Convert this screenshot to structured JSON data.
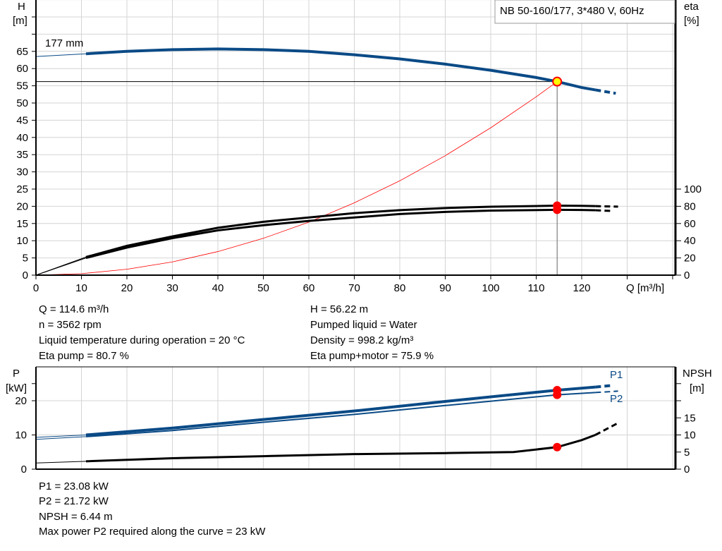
{
  "chart_data": [
    {
      "type": "line",
      "title": "NB 50-160/177, 3*480 V, 60Hz",
      "xlabel": "Q [m³/h]",
      "ylabel": "H [m]",
      "y2label": "eta [%]",
      "xlim": [
        0,
        140
      ],
      "ylim": [
        0,
        80
      ],
      "y2lim": [
        0,
        100
      ],
      "xticks": [
        0,
        10,
        20,
        30,
        40,
        50,
        60,
        70,
        80,
        90,
        100,
        110,
        120
      ],
      "yticks": [
        0,
        5,
        10,
        15,
        20,
        25,
        30,
        35,
        40,
        45,
        50,
        55,
        60,
        65
      ],
      "y2ticks": [
        0,
        20,
        40,
        60,
        80,
        100
      ],
      "grid": true,
      "impeller_label": "177 mm",
      "series": [
        {
          "key": "H",
          "color": "#0a4a86",
          "x": [
            0,
            11,
            20,
            30,
            40,
            50,
            60,
            70,
            80,
            90,
            100,
            110,
            114.6,
            120,
            123,
            127.5
          ],
          "y": [
            63.5,
            64.3,
            65,
            65.5,
            65.7,
            65.5,
            65,
            64,
            62.8,
            61.3,
            59.5,
            57.4,
            56.22,
            54.5,
            53.8,
            52.8
          ]
        },
        {
          "key": "system",
          "color": "#ff0000",
          "x": [
            0,
            10,
            20,
            30,
            40,
            50,
            60,
            70,
            80,
            90,
            100,
            110,
            114.6
          ],
          "y": [
            0,
            0.43,
            1.71,
            3.85,
            6.85,
            10.7,
            15.4,
            21,
            27.4,
            34.7,
            42.8,
            51.8,
            56.22
          ]
        },
        {
          "key": "eta_pump",
          "color": "#000000",
          "axis": "eta",
          "x": [
            0,
            11,
            20,
            30,
            40,
            50,
            60,
            70,
            80,
            90,
            100,
            114.6,
            120,
            123,
            128
          ],
          "y": [
            0,
            21,
            34,
            45,
            55,
            62,
            67,
            72,
            75.5,
            78,
            79.5,
            80.7,
            80.5,
            80.2,
            79.6
          ]
        },
        {
          "key": "eta_pump_motor",
          "color": "#000000",
          "axis": "eta",
          "x": [
            0,
            11,
            20,
            30,
            40,
            50,
            60,
            70,
            80,
            90,
            100,
            114.6,
            120,
            123,
            127
          ],
          "y": [
            0,
            20,
            32,
            43,
            52,
            58,
            63,
            67,
            71,
            73.5,
            75,
            75.9,
            75.7,
            75.4,
            74.5
          ]
        }
      ],
      "operating_point": {
        "Q": 114.6,
        "H": 56.22,
        "eta_pump": 80.7,
        "eta_pump_motor": 75.9
      }
    },
    {
      "type": "line",
      "ylabel": "P [kW]",
      "y2label": "NPSH [m]",
      "xlim": [
        0,
        140
      ],
      "ylim": [
        0,
        30
      ],
      "y2lim": [
        0,
        30
      ],
      "yticks": [
        0,
        10,
        20
      ],
      "y2ticks": [
        0,
        5,
        10,
        15
      ],
      "grid": true,
      "series": [
        {
          "name": "P1",
          "color": "#0a4a86",
          "x": [
            0,
            11,
            30,
            50,
            70,
            90,
            114.6,
            123,
            127
          ],
          "y": [
            9.3,
            10,
            12,
            14.5,
            17,
            19.8,
            23.08,
            24,
            24.5
          ]
        },
        {
          "name": "P2",
          "color": "#0a4a86",
          "x": [
            0,
            11,
            30,
            50,
            70,
            90,
            114.6,
            123,
            128
          ],
          "y": [
            8.7,
            9.5,
            11.3,
            13.7,
            16,
            18.6,
            21.72,
            22.4,
            22.8
          ]
        },
        {
          "key": "NPSH",
          "color": "#000000",
          "x": [
            0,
            11,
            30,
            50,
            70,
            90,
            105,
            114.6,
            120,
            123,
            128
          ],
          "y": [
            1.8,
            2.3,
            3.2,
            3.8,
            4.4,
            4.7,
            5.0,
            6.44,
            8.5,
            10,
            13.5
          ]
        }
      ]
    }
  ],
  "info_top": {
    "q": "Q = 114.6 m³/h",
    "n": "n = 3562 rpm",
    "temp": "Liquid temperature during operation = 20 °C",
    "eta_pump": "Eta pump = 80.7 %",
    "h": "H = 56.22 m",
    "liquid": "Pumped liquid = Water",
    "density": "Density = 998.2 kg/m³",
    "eta_pm": "Eta pump+motor = 75.9 %"
  },
  "info_bottom": {
    "p1": "P1 = 23.08 kW",
    "p2": "P2 = 21.72 kW",
    "npsh": "NPSH = 6.44 m",
    "max": "Max power P2 required along the curve = 23 kW"
  },
  "labels": {
    "h1": "H",
    "h2": "[m]",
    "eta1": "eta",
    "eta2": "[%]",
    "p1": "P",
    "p2": "[kW]",
    "n1": "NPSH",
    "n2": "[m]",
    "q": "Q [m³/h]",
    "p1c": "P1",
    "p2c": "P2"
  }
}
